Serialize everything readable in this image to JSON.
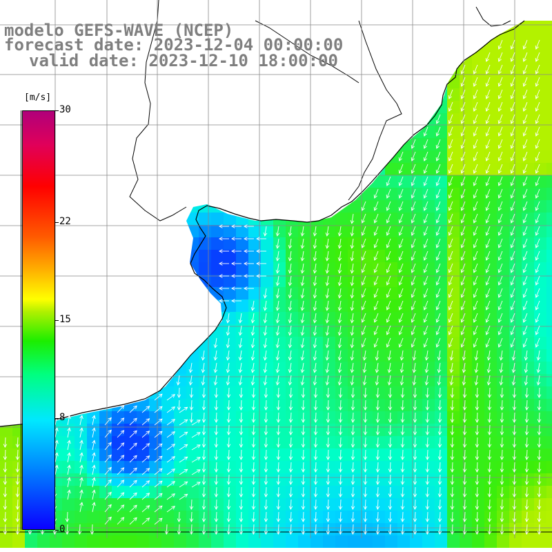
{
  "title": {
    "line1": "modelo GEFS-WAVE (NCEP)",
    "line2": "forecast date: 2023-12-04 00:00:00",
    "line3": "valid date: 2023-12-10 18:00:00"
  },
  "colorbar": {
    "unit": "[m/s]",
    "ticks": [
      "30",
      "22",
      "15",
      "8",
      "0"
    ],
    "tick_values": [
      30,
      22,
      15,
      8,
      0
    ],
    "min": 0,
    "max": 30
  },
  "colors": {
    "title_gray": "#7f7f7f",
    "grid": "#888888",
    "coast": "#000000",
    "arrow": "#ffffff",
    "land": "#ffffff"
  },
  "map": {
    "variable": "wind speed and direction",
    "wind_direction_general": "southward"
  }
}
